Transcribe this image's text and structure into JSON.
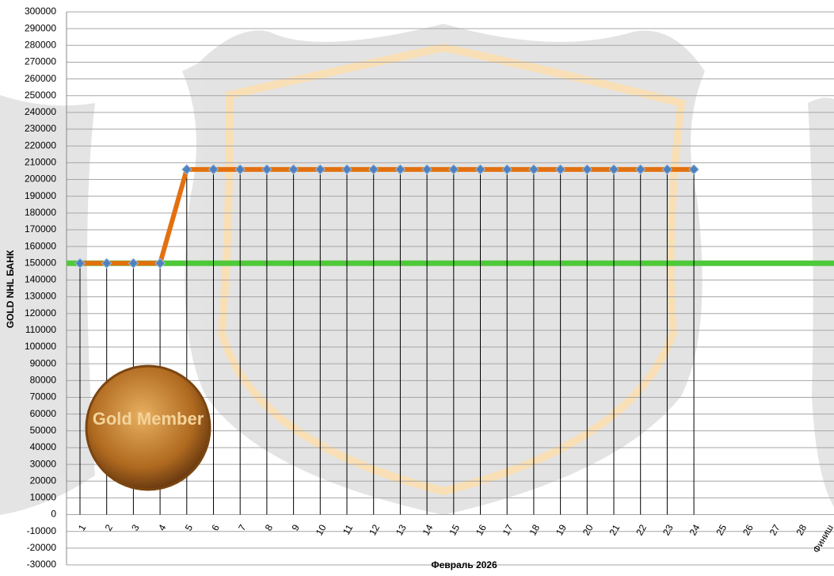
{
  "chart_data": {
    "type": "line",
    "y_label": "GOLD NHL  БАНК",
    "x_label": "Февраль 2026",
    "annotations": [
      "Gold Member"
    ],
    "categories": [
      "1",
      "2",
      "3",
      "4",
      "5",
      "6",
      "7",
      "8",
      "9",
      "10",
      "11",
      "12",
      "13",
      "14",
      "15",
      "16",
      "17",
      "18",
      "19",
      "20",
      "21",
      "22",
      "23",
      "24",
      "25",
      "26",
      "27",
      "28",
      "Финиш"
    ],
    "series": [
      {
        "color": "#4fc93a",
        "values": [
          150000,
          150000,
          150000,
          150000,
          150000,
          150000,
          150000,
          150000,
          150000,
          150000,
          150000,
          150000,
          150000,
          150000,
          150000,
          150000,
          150000,
          150000,
          150000,
          150000,
          150000,
          150000,
          150000,
          150000,
          150000,
          150000,
          150000,
          150000,
          150000
        ]
      },
      {
        "color": "#e3700f",
        "marker_color": "#4f81bd",
        "drop_lines": true,
        "values": [
          150000,
          150000,
          150000,
          150000,
          206000,
          206000,
          206000,
          206000,
          206000,
          206000,
          206000,
          206000,
          206000,
          206000,
          206000,
          206000,
          206000,
          206000,
          206000,
          206000,
          206000,
          206000,
          206000,
          206000,
          null,
          null,
          null,
          null,
          null
        ]
      }
    ],
    "ylim": [
      -30000,
      300000
    ],
    "yticks": [
      -30000,
      -20000,
      -10000,
      0,
      10000,
      20000,
      30000,
      40000,
      50000,
      60000,
      70000,
      80000,
      90000,
      100000,
      110000,
      120000,
      130000,
      140000,
      150000,
      160000,
      170000,
      180000,
      190000,
      200000,
      210000,
      220000,
      230000,
      240000,
      250000,
      260000,
      270000,
      280000,
      290000,
      300000
    ],
    "grid": true
  }
}
